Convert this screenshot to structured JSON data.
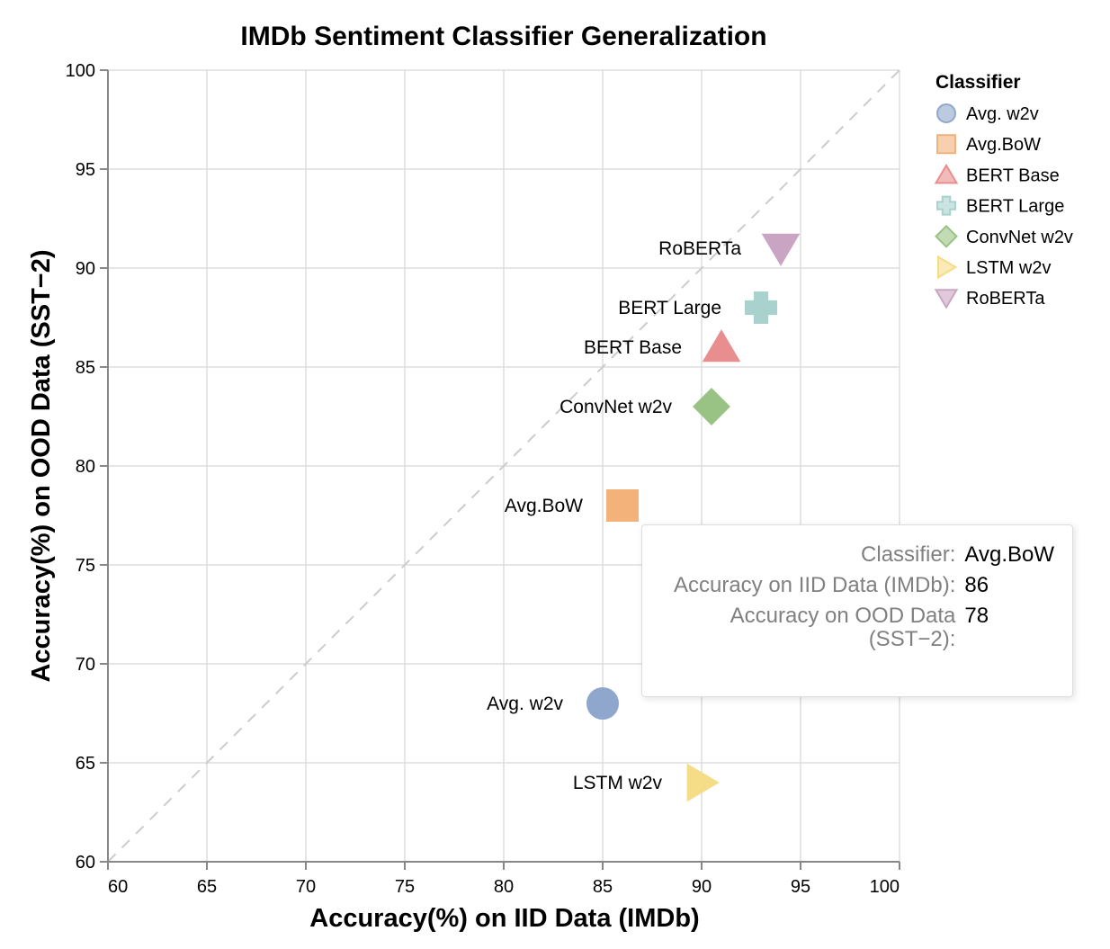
{
  "chart_data": {
    "type": "scatter",
    "title": "IMDb Sentiment Classifier Generalization",
    "xlabel": "Accuracy(%) on IID Data (IMDb)",
    "ylabel": "Accuracy(%) on OOD Data (SST−2)",
    "xlim": [
      60,
      100
    ],
    "ylim": [
      60,
      100
    ],
    "xticks": [
      60,
      65,
      70,
      75,
      80,
      85,
      90,
      95,
      100
    ],
    "yticks": [
      60,
      65,
      70,
      75,
      80,
      85,
      90,
      95,
      100
    ],
    "grid": true,
    "reference_line": "y = x (dashed)",
    "legend": {
      "title": "Classifier",
      "placement": "right",
      "entries": [
        {
          "name": "Avg. w2v",
          "color": "#8fa7cc",
          "shape": "circle"
        },
        {
          "name": "Avg.BoW",
          "color": "#f2b27a",
          "shape": "square"
        },
        {
          "name": "BERT Base",
          "color": "#e88e8e",
          "shape": "triangle-up"
        },
        {
          "name": "BERT Large",
          "color": "#a9d1cd",
          "shape": "cross"
        },
        {
          "name": "ConvNet w2v",
          "color": "#99c384",
          "shape": "diamond"
        },
        {
          "name": "LSTM w2v",
          "color": "#f5dc86",
          "shape": "triangle-right"
        },
        {
          "name": "RoBERTa",
          "color": "#c9a5c3",
          "shape": "triangle-down"
        }
      ]
    },
    "points": [
      {
        "name": "Avg. w2v",
        "x": 85,
        "y": 68
      },
      {
        "name": "Avg.BoW",
        "x": 86,
        "y": 78
      },
      {
        "name": "BERT Base",
        "x": 91,
        "y": 86
      },
      {
        "name": "BERT Large",
        "x": 93,
        "y": 88
      },
      {
        "name": "ConvNet w2v",
        "x": 90.5,
        "y": 83
      },
      {
        "name": "LSTM w2v",
        "x": 90,
        "y": 64
      },
      {
        "name": "RoBERTa",
        "x": 94,
        "y": 91
      }
    ]
  },
  "tooltip": {
    "rows": [
      {
        "key": "Classifier:",
        "value": "Avg.BoW"
      },
      {
        "key": "Accuracy on IID Data (IMDb):",
        "value": "86"
      },
      {
        "key": "Accuracy on OOD Data (SST−2):",
        "value": "78"
      }
    ]
  }
}
